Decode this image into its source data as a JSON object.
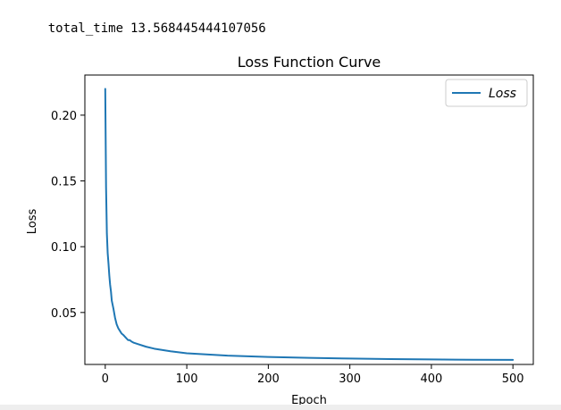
{
  "output": {
    "label": "total_time",
    "value": "13.568445444107056"
  },
  "chart_data": {
    "type": "line",
    "title": "Loss Function Curve",
    "xlabel": "Epoch",
    "ylabel": "Loss",
    "xlim": [
      -25,
      525
    ],
    "ylim": [
      0.0105,
      0.2305
    ],
    "xticks": [
      0,
      100,
      200,
      300,
      400,
      500
    ],
    "yticks": [
      0.05,
      0.1,
      0.15,
      0.2
    ],
    "ytick_labels": [
      "0.05",
      "0.10",
      "0.15",
      "0.20"
    ],
    "legend": "top-right",
    "grid": false,
    "series": [
      {
        "name": "Loss",
        "color": "#1f77b4",
        "x": [
          0,
          1,
          2,
          3,
          4,
          5,
          6,
          7,
          8,
          10,
          12,
          14,
          16,
          18,
          20,
          22,
          25,
          28,
          30,
          32,
          35,
          40,
          50,
          60,
          80,
          100,
          150,
          200,
          250,
          300,
          350,
          400,
          450,
          500
        ],
        "y": [
          0.22,
          0.145,
          0.11,
          0.095,
          0.087,
          0.078,
          0.071,
          0.066,
          0.059,
          0.053,
          0.046,
          0.041,
          0.038,
          0.036,
          0.034,
          0.033,
          0.031,
          0.029,
          0.029,
          0.028,
          0.027,
          0.026,
          0.024,
          0.0225,
          0.0205,
          0.019,
          0.0172,
          0.0162,
          0.0155,
          0.015,
          0.0146,
          0.0143,
          0.0141,
          0.014
        ]
      }
    ]
  }
}
